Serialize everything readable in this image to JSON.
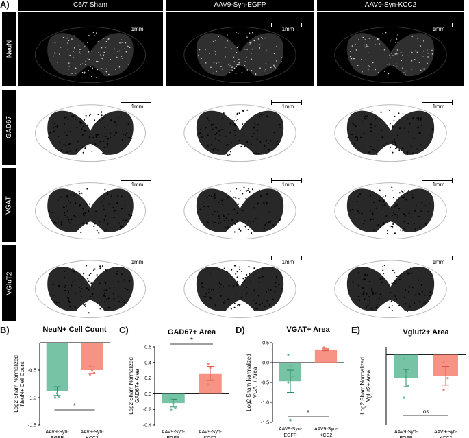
{
  "panel_a": {
    "letter": "A)",
    "columns": [
      "C6/7 Sham",
      "AAV9-Syn-EGFP",
      "AAV9-Syn-KCC2"
    ],
    "rows": [
      "NeuN",
      "GAD67",
      "VGAT",
      "VGluT2"
    ],
    "scale_label": "1mm",
    "colors": {
      "neun_bg": "#000000",
      "stain_bg": "#ffffff"
    }
  },
  "panel_b": {
    "letter": "B)"
  },
  "panel_c": {
    "letter": "C)"
  },
  "panel_d": {
    "letter": "D)"
  },
  "panel_e": {
    "letter": "E)"
  },
  "chart_data": [
    {
      "type": "bar",
      "title": "NeuN+ Cell Count",
      "ylabel": "Log2 Sham Normalized NeuN+ Cell Count",
      "categories": [
        "AAV9-Syn-EGFP",
        "AAV9-Syn-KCC2"
      ],
      "values": [
        -0.88,
        -0.5
      ],
      "errors": [
        0.08,
        0.06
      ],
      "points": [
        [
          -0.85,
          -0.92,
          -0.98,
          -1.0
        ],
        [
          -0.42,
          -0.5,
          -0.55,
          -0.58
        ]
      ],
      "ylim": [
        -1.5,
        0
      ],
      "yticks": [
        -1.5,
        -1.0,
        -0.5
      ],
      "significance": "*",
      "colors": [
        "#5fb995",
        "#f4806e"
      ]
    },
    {
      "type": "bar",
      "title": "GAD67+ Area",
      "ylabel": "Log2 Sham Normalized GAD67+ Area",
      "categories": [
        "AAV9-Syn-EGFP",
        "AAV9-Syn-KCC2"
      ],
      "values": [
        -0.12,
        0.26
      ],
      "errors": [
        0.05,
        0.09
      ],
      "points": [
        [
          -0.06,
          -0.13,
          -0.18,
          -0.2
        ],
        [
          0.38,
          0.33,
          0.18,
          0.12
        ]
      ],
      "ylim": [
        -0.4,
        0.6
      ],
      "yticks": [
        -0.4,
        -0.2,
        0.0,
        0.2,
        0.4,
        0.6
      ],
      "significance": "*",
      "colors": [
        "#5fb995",
        "#f4806e"
      ]
    },
    {
      "type": "bar",
      "title": "VGAT+ Area",
      "ylabel": "Log2 Sham Normalized VGAT+ Area",
      "categories": [
        "AAV9-Syn-EGFP",
        "AAV9-Syn-KCC2"
      ],
      "values": [
        -0.47,
        0.33
      ],
      "errors": [
        0.28,
        0.03
      ],
      "points": [
        [
          0.2,
          -0.1,
          -0.35,
          -0.5,
          -1.45
        ],
        [
          0.38,
          0.36,
          0.35,
          0.34
        ]
      ],
      "ylim": [
        -1.5,
        0.5
      ],
      "yticks": [
        -1.5,
        -1.0,
        -0.5,
        0.0,
        0.5
      ],
      "significance": "*",
      "colors": [
        "#5fb995",
        "#f4806e"
      ]
    },
    {
      "type": "bar",
      "title": "Vglut2+ Area",
      "ylabel": "Log2 Sham Normalized Vglut2+ Area",
      "categories": [
        "AAV9-Syn-EGFP",
        "AAV9-Syn-KCC2"
      ],
      "values": [
        -0.3,
        -0.27
      ],
      "errors": [
        0.11,
        0.12
      ],
      "points": [
        [
          -0.05,
          -0.25,
          -0.4,
          -0.55
        ],
        [
          -0.1,
          -0.2,
          -0.3,
          -0.45
        ]
      ],
      "ylim": [
        -0.9,
        0.1
      ],
      "yticks": [],
      "significance": "ns",
      "colors": [
        "#5fb995",
        "#f4806e"
      ]
    }
  ]
}
